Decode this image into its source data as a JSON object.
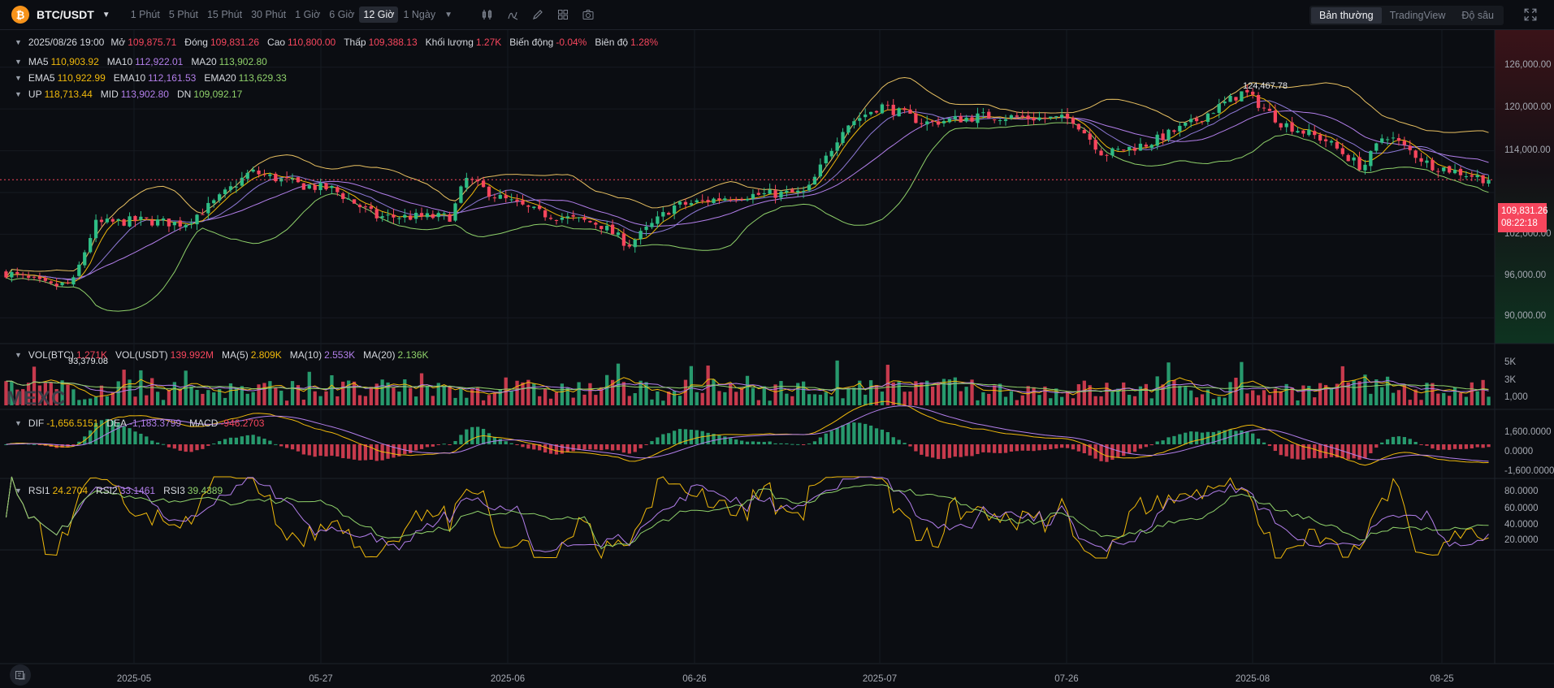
{
  "toolbar": {
    "logo_glyph": "₿",
    "pair": "BTC/USDT",
    "pair_caret": "▼",
    "intervals": [
      "1 Phút",
      "5 Phút",
      "15 Phút",
      "30 Phút",
      "1 Giờ",
      "6 Giờ",
      "12 Giờ",
      "1 Ngày"
    ],
    "active_interval": "12 Giờ",
    "interval_more_caret": "▼",
    "tools": [
      "candlestick-type-icon",
      "indicators-icon",
      "draw-icon",
      "layout-icon",
      "camera-icon"
    ],
    "views": [
      "Bản thường",
      "TradingView",
      "Độ sâu"
    ],
    "active_view": "Bản thường"
  },
  "ohlc_legend": {
    "datetime": "2025/08/26 19:00",
    "open_label": "Mở",
    "open": "109,875.71",
    "close_label": "Đóng",
    "close": "109,831.26",
    "high_label": "Cao",
    "high": "110,800.00",
    "low_label": "Thấp",
    "low": "109,388.13",
    "volume_label": "Khối lượng",
    "volume": "1.27K",
    "change_label": "Biến động",
    "change": "-0.04%",
    "amplitude_label": "Biên độ",
    "amplitude": "1.28%"
  },
  "ma_legend": {
    "ma5_label": "MA5",
    "ma5": "110,903.92",
    "ma10_label": "MA10",
    "ma10": "112,922.01",
    "ma20_label": "MA20",
    "ma20": "113,902.80"
  },
  "ema_legend": {
    "ema5_label": "EMA5",
    "ema5": "110,922.99",
    "ema10_label": "EMA10",
    "ema10": "112,161.53",
    "ema20_label": "EMA20",
    "ema20": "113,629.33"
  },
  "boll_legend": {
    "up_label": "UP",
    "up": "118,713.44",
    "mid_label": "MID",
    "mid": "113,902.80",
    "dn_label": "DN",
    "dn": "109,092.17"
  },
  "vol_legend": {
    "btc_label": "VOL(BTC)",
    "btc": "1.271K",
    "usdt_label": "VOL(USDT)",
    "usdt": "139.992M",
    "ma5_label": "MA(5)",
    "ma5": "2.809K",
    "ma10_label": "MA(10)",
    "ma10": "2.553K",
    "ma20_label": "MA(20)",
    "ma20": "2.136K"
  },
  "macd_legend": {
    "dif_label": "DIF",
    "dif": "-1,656.5151",
    "dea_label": "DEA",
    "dea": "-1,183.3799",
    "macd_label": "MACD",
    "macd": "-946.2703"
  },
  "rsi_legend": {
    "rsi1_label": "RSI1",
    "rsi1": "24.2704",
    "rsi2_label": "RSI2",
    "rsi2": "33.1461",
    "rsi3_label": "RSI3",
    "rsi3": "39.4389"
  },
  "price_axis": [
    "126,000.00",
    "120,000.00",
    "114,000.00",
    "108,000.00",
    "102,000.00",
    "96,000.00",
    "90,000.00"
  ],
  "vol_axis": [
    "5K",
    "3K",
    "1,000"
  ],
  "macd_axis": [
    "1,600.0000",
    "0.0000",
    "-1,600.0000"
  ],
  "rsi_axis": [
    "80.0000",
    "60.0000",
    "40.0000",
    "20.0000"
  ],
  "x_axis": [
    "2025-05",
    "05-27",
    "2025-06",
    "06-26",
    "2025-07",
    "07-26",
    "2025-08",
    "08-25"
  ],
  "last_price": {
    "price": "109,831.26",
    "countdown": "08:22:18"
  },
  "annotations": {
    "high": "124,467.78",
    "low": "93,379.08"
  },
  "watermark": "MEXC",
  "colors": {
    "up": "#2ebd85",
    "down": "#f6465d",
    "ma5": "#f0b90b",
    "ma10": "#b37feb",
    "ma20": "#8fd16a",
    "boll": "#e8c061"
  },
  "chart_data": {
    "type": "candlestick",
    "interval": "12 Giờ",
    "pair": "BTC/USDT",
    "x_ticks": [
      "2025-05",
      "05-27",
      "2025-06",
      "06-26",
      "2025-07",
      "07-26",
      "2025-08",
      "08-25"
    ],
    "ylim": [
      87000,
      129000
    ],
    "y_ticks": [
      90000,
      96000,
      102000,
      108000,
      114000,
      120000,
      126000
    ],
    "close_anchors": [
      {
        "x": 0,
        "close": 96500
      },
      {
        "x": 0.03,
        "close": 94500
      },
      {
        "x": 0.045,
        "close": 95000
      },
      {
        "x": 0.06,
        "close": 103500
      },
      {
        "x": 0.09,
        "close": 104000
      },
      {
        "x": 0.12,
        "close": 103500
      },
      {
        "x": 0.14,
        "close": 106500
      },
      {
        "x": 0.165,
        "close": 111000
      },
      {
        "x": 0.2,
        "close": 109000
      },
      {
        "x": 0.22,
        "close": 108500
      },
      {
        "x": 0.25,
        "close": 104500
      },
      {
        "x": 0.3,
        "close": 104500
      },
      {
        "x": 0.31,
        "close": 110000
      },
      {
        "x": 0.33,
        "close": 107500
      },
      {
        "x": 0.36,
        "close": 105000
      },
      {
        "x": 0.4,
        "close": 103500
      },
      {
        "x": 0.42,
        "close": 100500
      },
      {
        "x": 0.45,
        "close": 106000
      },
      {
        "x": 0.49,
        "close": 107500
      },
      {
        "x": 0.54,
        "close": 108000
      },
      {
        "x": 0.565,
        "close": 117500
      },
      {
        "x": 0.59,
        "close": 120500
      },
      {
        "x": 0.62,
        "close": 118000
      },
      {
        "x": 0.66,
        "close": 119000
      },
      {
        "x": 0.72,
        "close": 118500
      },
      {
        "x": 0.74,
        "close": 113500
      },
      {
        "x": 0.77,
        "close": 115000
      },
      {
        "x": 0.8,
        "close": 118000
      },
      {
        "x": 0.835,
        "close": 122500
      },
      {
        "x": 0.86,
        "close": 118000
      },
      {
        "x": 0.89,
        "close": 115500
      },
      {
        "x": 0.915,
        "close": 111500
      },
      {
        "x": 0.93,
        "close": 116500
      },
      {
        "x": 0.96,
        "close": 112000
      },
      {
        "x": 1,
        "close": 109831.26
      }
    ],
    "high_marker": 124467.78,
    "low_marker": 93379.08,
    "last_close": 109831.26,
    "volume_ylim": [
      0,
      6000
    ],
    "macd_ylim": [
      -2600,
      2600
    ],
    "rsi_ylim": [
      10,
      95
    ]
  }
}
